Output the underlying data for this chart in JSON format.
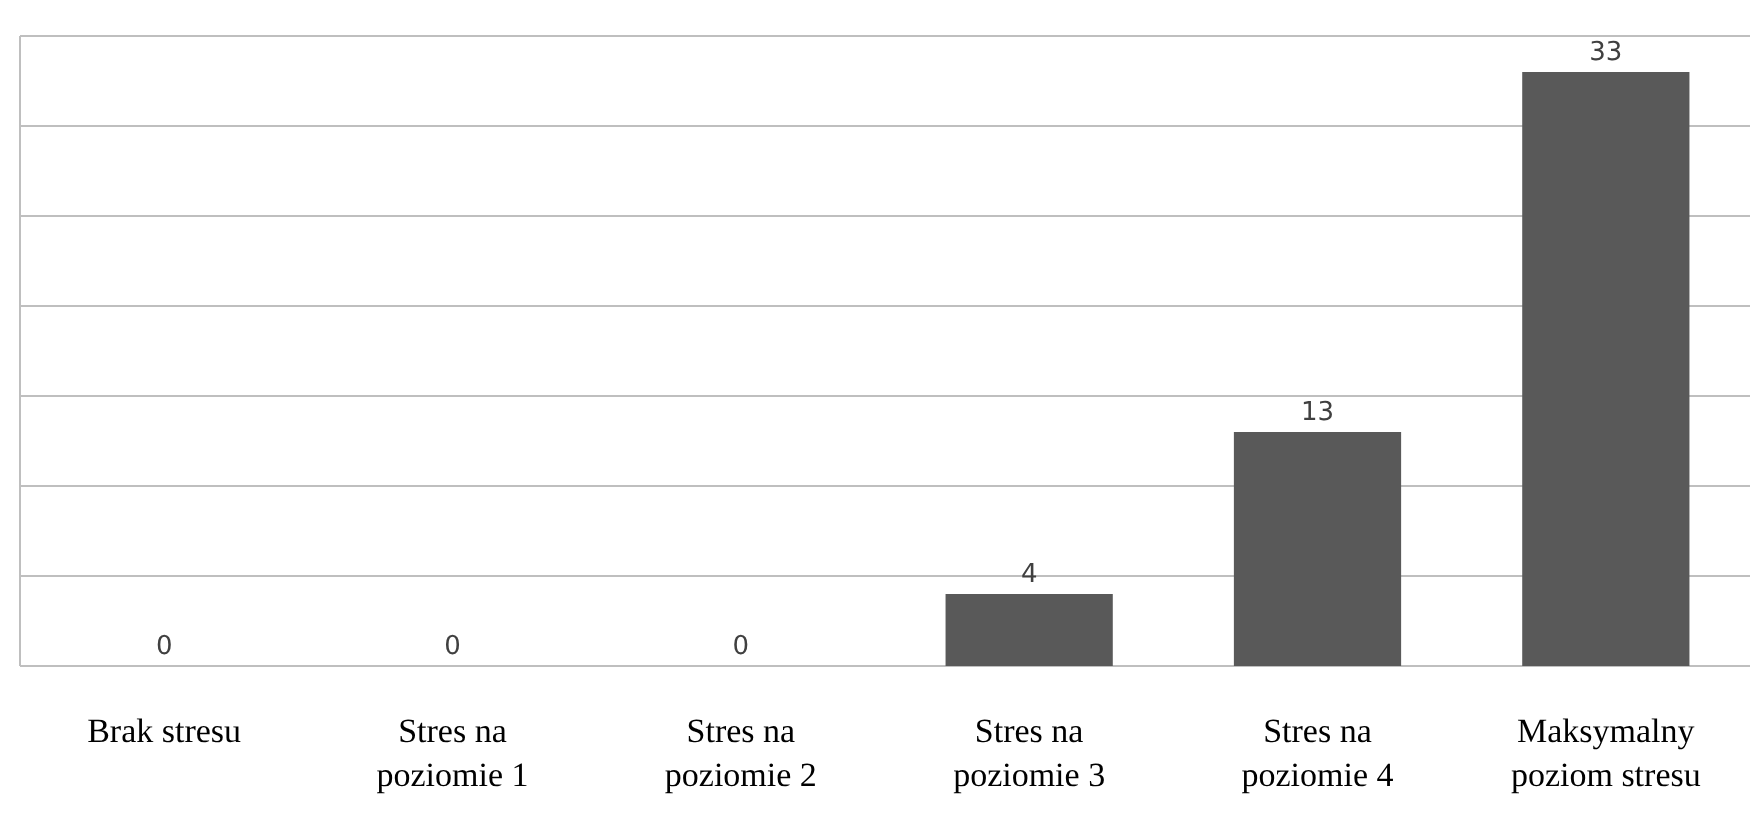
{
  "chart_data": {
    "type": "bar",
    "categories": [
      "Brak stresu",
      "Stres na poziomie 1",
      "Stres na poziomie 2",
      "Stres na poziomie 3",
      "Stres na poziomie 4",
      "Maksymalny poziom stresu"
    ],
    "values": [
      0,
      0,
      0,
      4,
      13,
      33
    ],
    "color": "#595959",
    "ylim": [
      0,
      35
    ],
    "yticks": [
      {
        "value": 0,
        "label": null
      },
      {
        "value": 5,
        "label": null
      },
      {
        "value": 10,
        "label": null
      },
      {
        "value": 15,
        "label": null
      },
      {
        "value": 20,
        "label": null
      },
      {
        "value": 25,
        "label": null
      },
      {
        "value": 30,
        "label": null
      },
      {
        "value": 35,
        "label": null
      }
    ],
    "grid": "y",
    "tick_labels": "x",
    "data_labels": true
  }
}
